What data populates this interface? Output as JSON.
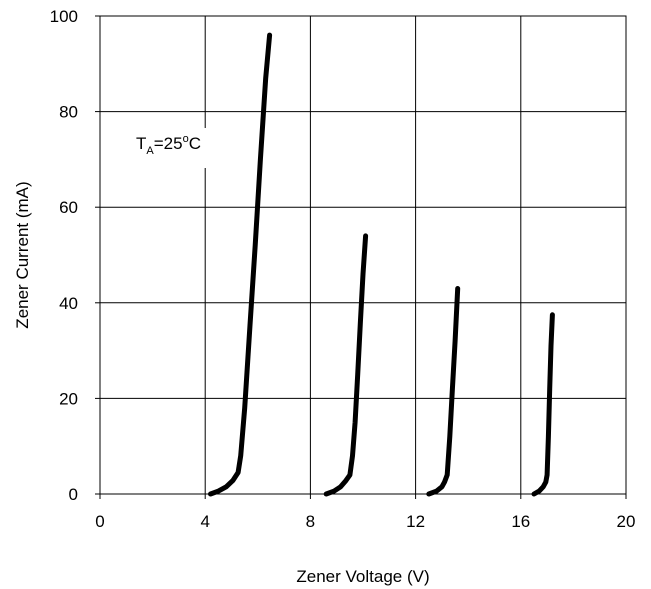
{
  "chart_data": {
    "type": "line",
    "title": "",
    "xlabel": "Zener Voltage (V)",
    "ylabel": "Zener Current (mA)",
    "xlim": [
      0,
      20
    ],
    "ylim": [
      0,
      100
    ],
    "xticks": [
      0,
      4,
      8,
      12,
      16,
      20
    ],
    "yticks": [
      0,
      20,
      40,
      60,
      80,
      100
    ],
    "xtick_labels": [
      "0",
      "4",
      "8",
      "12",
      "16",
      "20"
    ],
    "ytick_labels": [
      "0",
      "20",
      "40",
      "60",
      "80",
      "100"
    ],
    "grid": true,
    "legend": "none",
    "annotation": {
      "main": "T",
      "sub": "A",
      "rest": "=25",
      "sup": "o",
      "unit": "C"
    },
    "line_color": "#000000",
    "series": [
      {
        "points": [
          [
            4.2,
            0
          ],
          [
            4.5,
            0.6
          ],
          [
            4.8,
            1.5
          ],
          [
            5.05,
            2.8
          ],
          [
            5.25,
            4.5
          ],
          [
            5.35,
            8
          ],
          [
            5.5,
            18
          ],
          [
            5.7,
            35
          ],
          [
            5.9,
            52
          ],
          [
            6.1,
            70
          ],
          [
            6.3,
            87
          ],
          [
            6.45,
            96
          ]
        ]
      },
      {
        "points": [
          [
            8.6,
            0
          ],
          [
            8.9,
            0.6
          ],
          [
            9.15,
            1.5
          ],
          [
            9.35,
            2.8
          ],
          [
            9.5,
            4
          ],
          [
            9.6,
            8
          ],
          [
            9.7,
            15
          ],
          [
            9.8,
            25
          ],
          [
            9.9,
            36
          ],
          [
            10.0,
            46
          ],
          [
            10.1,
            54
          ]
        ]
      },
      {
        "points": [
          [
            12.5,
            0
          ],
          [
            12.8,
            0.6
          ],
          [
            13.0,
            1.5
          ],
          [
            13.1,
            2.5
          ],
          [
            13.2,
            4
          ],
          [
            13.3,
            12
          ],
          [
            13.4,
            22
          ],
          [
            13.5,
            32
          ],
          [
            13.6,
            43
          ]
        ]
      },
      {
        "points": [
          [
            16.5,
            0
          ],
          [
            16.7,
            0.6
          ],
          [
            16.85,
            1.5
          ],
          [
            16.95,
            2.5
          ],
          [
            17.0,
            4
          ],
          [
            17.05,
            12
          ],
          [
            17.1,
            22
          ],
          [
            17.15,
            31
          ],
          [
            17.2,
            37.5
          ]
        ]
      }
    ]
  }
}
